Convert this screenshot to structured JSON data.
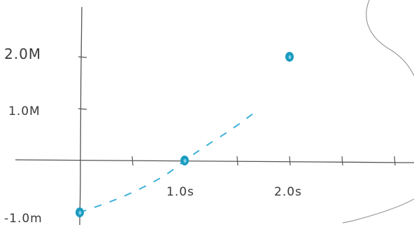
{
  "chart_data": {
    "type": "scatter",
    "x_tick_labels": [
      "1.0s",
      "2.0s"
    ],
    "y_tick_labels": [
      "2.0M",
      "1.0M",
      "-1.0m"
    ],
    "xlim": [
      0,
      3.0
    ],
    "ylim": [
      -1.2,
      2.8
    ],
    "points": [
      {
        "x": 0.0,
        "y": -1.0
      },
      {
        "x": 1.0,
        "y": 0.0
      },
      {
        "x": 2.0,
        "y": 2.0
      }
    ],
    "trend_curve": [
      {
        "x": 0.0,
        "y": -1.0
      },
      {
        "x": 0.4,
        "y": -0.72
      },
      {
        "x": 0.8,
        "y": -0.32
      },
      {
        "x": 1.0,
        "y": 0.0
      },
      {
        "x": 1.2,
        "y": 0.28
      },
      {
        "x": 1.45,
        "y": 0.6
      },
      {
        "x": 1.65,
        "y": 0.9
      }
    ],
    "colors": {
      "points": "#1a9bbf",
      "trend": "#3fb2da",
      "axes": "#555555",
      "sketch": "#9a9a9a"
    },
    "grid": false
  }
}
